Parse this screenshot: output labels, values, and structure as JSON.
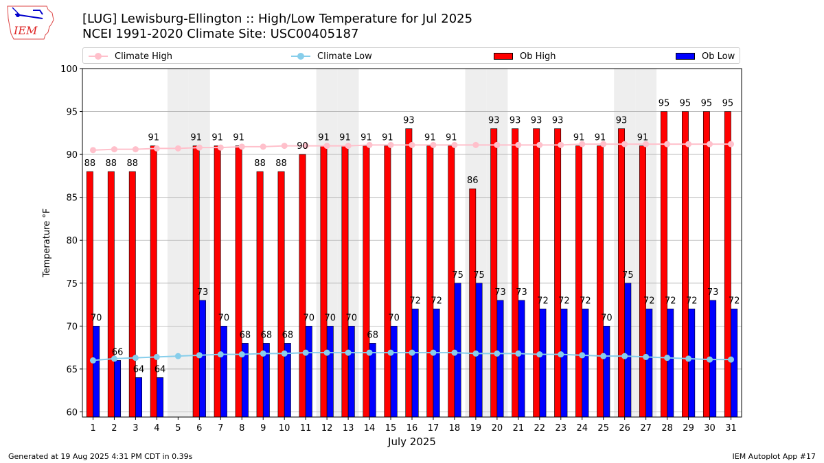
{
  "header": {
    "title": "[LUG] Lewisburg-Ellington :: High/Low Temperature for Jul 2025",
    "subtitle": "NCEI 1991-2020 Climate Site: USC00405187",
    "logo_text": "IEM"
  },
  "footer": {
    "generated": "Generated at 19 Aug 2025 4:31 PM CDT in 0.39s",
    "app": "IEM Autoplot App #17"
  },
  "colors": {
    "climate_high": "#ffc0cb",
    "climate_low": "#87ceeb",
    "ob_high": "#ff0000",
    "ob_low": "#0000ff",
    "weekend_shade": "#eeeeee",
    "grid": "#b0b0b0"
  },
  "legend": {
    "placement": "top",
    "items": [
      "Climate High",
      "Climate Low",
      "Ob High",
      "Ob Low"
    ]
  },
  "chart_data": {
    "type": "bar",
    "xlabel": "July 2025",
    "ylabel": "Temperature °F",
    "ylim": [
      59.4,
      100
    ],
    "yticks": [
      60,
      65,
      70,
      75,
      80,
      85,
      90,
      95,
      100
    ],
    "grid": "horizontal",
    "categories": [
      "1",
      "2",
      "3",
      "4",
      "5",
      "6",
      "7",
      "8",
      "9",
      "10",
      "11",
      "12",
      "13",
      "14",
      "15",
      "16",
      "17",
      "18",
      "19",
      "20",
      "21",
      "22",
      "23",
      "24",
      "25",
      "26",
      "27",
      "28",
      "29",
      "30",
      "31"
    ],
    "shaded_days": [
      5,
      6,
      12,
      13,
      19,
      20,
      26,
      27
    ],
    "series": [
      {
        "name": "Ob High",
        "kind": "bar",
        "values": [
          88,
          88,
          88,
          91,
          null,
          91,
          91,
          91,
          88,
          88,
          90,
          91,
          91,
          91,
          91,
          93,
          91,
          91,
          86,
          93,
          93,
          93,
          93,
          91,
          91,
          93,
          91,
          95,
          95,
          95,
          95
        ]
      },
      {
        "name": "Ob Low",
        "kind": "bar",
        "values": [
          70,
          66,
          64,
          64,
          null,
          73,
          70,
          68,
          68,
          68,
          70,
          70,
          70,
          68,
          70,
          72,
          72,
          75,
          75,
          73,
          73,
          72,
          72,
          72,
          70,
          75,
          72,
          72,
          72,
          73,
          72
        ]
      },
      {
        "name": "Climate High",
        "kind": "line",
        "values": [
          90.5,
          90.6,
          90.6,
          90.7,
          90.7,
          90.8,
          90.8,
          90.9,
          90.9,
          91.0,
          91.0,
          91.0,
          91.0,
          91.1,
          91.1,
          91.1,
          91.1,
          91.1,
          91.1,
          91.1,
          91.1,
          91.1,
          91.1,
          91.2,
          91.2,
          91.2,
          91.2,
          91.2,
          91.2,
          91.2,
          91.2
        ]
      },
      {
        "name": "Climate Low",
        "kind": "line",
        "values": [
          66.0,
          66.2,
          66.3,
          66.4,
          66.5,
          66.6,
          66.7,
          66.7,
          66.8,
          66.8,
          66.9,
          66.9,
          66.9,
          66.9,
          66.9,
          66.9,
          66.9,
          66.9,
          66.8,
          66.8,
          66.8,
          66.7,
          66.7,
          66.6,
          66.5,
          66.5,
          66.4,
          66.3,
          66.2,
          66.1,
          66.1
        ]
      }
    ]
  }
}
